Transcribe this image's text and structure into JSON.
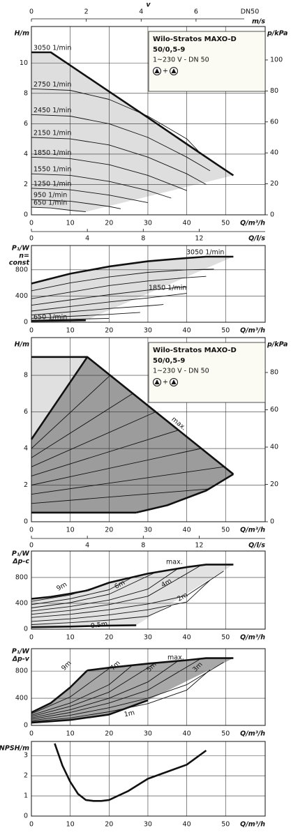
{
  "chart_data": [
    {
      "type": "line",
      "ylabel": "H/m",
      "y2label": "p/kPa",
      "xlabel": "Q/m³/h",
      "x2label": "Q/l/s",
      "xlim": [
        0,
        60.2
      ],
      "xticks": [
        0,
        10,
        20,
        30,
        40,
        50
      ],
      "x2lim": [
        0,
        16.72
      ],
      "x2ticks": [
        0,
        4,
        8,
        12
      ],
      "ylim": [
        0,
        12.4
      ],
      "yticks": [
        0,
        2,
        4,
        6,
        8,
        10
      ],
      "y2lim": [
        0,
        121.6
      ],
      "y2ticks": [
        0,
        20,
        40,
        60,
        80,
        100
      ],
      "top_axis": {
        "label": "v",
        "unit": "m/s",
        "note": "DN50",
        "lim": [
          0,
          8.52
        ],
        "ticks": [
          0,
          2,
          4,
          6
        ]
      },
      "grid": true,
      "line_color": "#111111",
      "shade_color": "#dedede",
      "legend_box": {
        "lines": [
          "Wilo-Stratos MAXO-D",
          "50/0,5-9",
          "1~230 V - DN 50"
        ],
        "joiner": "+"
      },
      "series": [
        {
          "name": "3050 1/min",
          "style": "thick",
          "x": [
            0,
            5,
            10,
            20,
            30,
            40,
            48,
            52
          ],
          "values": [
            10.7,
            10.7,
            9.84,
            8.12,
            6.4,
            4.66,
            3.28,
            2.6
          ]
        },
        {
          "name": "2750 1/min",
          "x": [
            0,
            10,
            20,
            30,
            40,
            43
          ],
          "values": [
            8.3,
            8.2,
            7.6,
            6.5,
            5.0,
            4.2
          ]
        },
        {
          "name": "2450 1/min",
          "x": [
            0,
            10,
            20,
            30,
            40,
            46
          ],
          "values": [
            6.6,
            6.5,
            6.0,
            5.1,
            3.8,
            2.9
          ]
        },
        {
          "name": "2150 1/min",
          "x": [
            0,
            10,
            20,
            30,
            40,
            45
          ],
          "values": [
            5.1,
            5.0,
            4.6,
            3.8,
            2.7,
            2.0
          ]
        },
        {
          "name": "1850 1/min",
          "x": [
            0,
            10,
            20,
            30,
            40
          ],
          "values": [
            3.8,
            3.7,
            3.3,
            2.6,
            1.6
          ]
        },
        {
          "name": "1550 1/min",
          "x": [
            0,
            10,
            20,
            30,
            36
          ],
          "values": [
            2.7,
            2.6,
            2.2,
            1.6,
            1.1
          ]
        },
        {
          "name": "1250 1/min",
          "x": [
            0,
            10,
            20,
            30
          ],
          "values": [
            1.75,
            1.65,
            1.3,
            0.8
          ]
        },
        {
          "name": "950 1/min",
          "x": [
            0,
            10,
            20,
            23
          ],
          "values": [
            1.0,
            0.9,
            0.55,
            0.4
          ]
        },
        {
          "name": "650 1/min",
          "x": [
            0,
            5,
            10,
            14
          ],
          "values": [
            0.5,
            0.45,
            0.3,
            0.2
          ]
        }
      ]
    },
    {
      "type": "line",
      "ylabel": "P₁/W",
      "ylabel_lines": [
        "n=",
        "const"
      ],
      "xlabel": "Q/m³/h",
      "xlim": [
        0,
        60.2
      ],
      "xticks": [
        0,
        10,
        20,
        30,
        40,
        50
      ],
      "ylim": [
        0,
        1170
      ],
      "yticks": [
        0,
        400,
        800
      ],
      "grid": true,
      "line_color": "#111111",
      "shade_color": "#dedede",
      "series": [
        {
          "name": "3050 1/min",
          "style": "thick",
          "x": [
            0,
            10,
            20,
            30,
            40,
            45,
            52
          ],
          "values": [
            590,
            740,
            850,
            930,
            980,
            1000,
            1000
          ]
        },
        {
          "x": [
            0,
            10,
            20,
            30,
            40,
            47
          ],
          "values": [
            480,
            600,
            690,
            760,
            800,
            810
          ]
        },
        {
          "x": [
            0,
            10,
            20,
            30,
            40,
            45
          ],
          "values": [
            360,
            460,
            560,
            630,
            680,
            700
          ]
        },
        {
          "x": [
            0,
            10,
            20,
            30,
            40
          ],
          "values": [
            260,
            340,
            420,
            490,
            540
          ]
        },
        {
          "name": "1850 1/min",
          "x": [
            0,
            10,
            20,
            30,
            40
          ],
          "values": [
            170,
            240,
            310,
            370,
            440
          ]
        },
        {
          "x": [
            0,
            10,
            20,
            30,
            34
          ],
          "values": [
            110,
            160,
            210,
            250,
            270
          ]
        },
        {
          "x": [
            0,
            10,
            20,
            28
          ],
          "values": [
            60,
            90,
            120,
            150
          ]
        },
        {
          "x": [
            0,
            10,
            20
          ],
          "values": [
            30,
            45,
            60
          ]
        },
        {
          "name": "650 1/min",
          "style": "thick",
          "x": [
            0,
            10,
            14
          ],
          "values": [
            20,
            25,
            30
          ]
        }
      ]
    },
    {
      "type": "line",
      "ylabel": "H/m",
      "y2label": "p/kPa",
      "xlabel": "Q/m³/h",
      "x2label": "Q/l/s",
      "xlim": [
        0,
        60.2
      ],
      "xticks": [
        0,
        10,
        20,
        30,
        40,
        50
      ],
      "x2lim": [
        0,
        16.72
      ],
      "x2ticks": [
        0,
        4,
        8,
        12
      ],
      "ylim": [
        0,
        10.06
      ],
      "yticks": [
        0,
        2,
        4,
        6,
        8
      ],
      "y2lim": [
        0,
        98.7
      ],
      "y2ticks": [
        0,
        20,
        40,
        60,
        80
      ],
      "grid": true,
      "line_color": "#111111",
      "legend_box": {
        "lines": [
          "Wilo-Stratos MAXO-D",
          "50/0,5-9",
          "1~230 V - DN 50"
        ],
        "joiner": "+"
      },
      "series": [
        {
          "fill": "#e0e0e0",
          "x": [
            0,
            14.4,
            0
          ],
          "values": [
            9,
            9,
            4.5
          ]
        },
        {
          "fill": "#9c9c9c",
          "x": [
            0,
            0,
            14.4,
            52,
            45,
            35,
            27
          ],
          "values": [
            0.5,
            4.5,
            9,
            2.6,
            1.7,
            0.9,
            0.5
          ]
        },
        {
          "name": "max.",
          "style": "thick",
          "x": [
            0,
            14.4,
            52
          ],
          "values": [
            9,
            9,
            2.6
          ]
        },
        {
          "style": "thick",
          "x": [
            0,
            14.4
          ],
          "values": [
            4.5,
            9
          ]
        },
        {
          "style": "thick",
          "x": [
            0,
            27
          ],
          "values": [
            0.5,
            0.5
          ]
        },
        {
          "style": "thick",
          "x": [
            27,
            35,
            45,
            52
          ],
          "values": [
            0.5,
            0.9,
            1.7,
            2.6
          ]
        },
        {
          "x": [
            0,
            46
          ],
          "values": [
            1,
            1.8
          ]
        },
        {
          "x": [
            0,
            49.5
          ],
          "values": [
            1.5,
            3
          ]
        },
        {
          "x": [
            0,
            43.7
          ],
          "values": [
            2,
            4
          ]
        },
        {
          "x": [
            0,
            37.8
          ],
          "values": [
            2.5,
            5
          ]
        },
        {
          "x": [
            0,
            32
          ],
          "values": [
            3,
            6
          ]
        },
        {
          "x": [
            0,
            26.1
          ],
          "values": [
            3.5,
            7
          ]
        },
        {
          "x": [
            0,
            20.3
          ],
          "values": [
            4,
            8
          ]
        }
      ]
    },
    {
      "type": "line",
      "ylabel": "P₁/W",
      "ylabel_lines": [
        "Δp-c"
      ],
      "xlabel": "Q/m³/h",
      "xlim": [
        0,
        60.2
      ],
      "xticks": [
        0,
        10,
        20,
        30,
        40,
        50
      ],
      "ylim": [
        0,
        1210
      ],
      "yticks": [
        0,
        400,
        800
      ],
      "grid": true,
      "line_color": "#111111",
      "shade_color": "#e2e2e2",
      "series": [
        {
          "name": "9m",
          "style": "thick",
          "x": [
            0,
            5,
            10,
            14.4
          ],
          "values": [
            470,
            500,
            550,
            600
          ]
        },
        {
          "name": "max.",
          "style": "thick",
          "x": [
            14.4,
            20,
            30,
            40,
            45,
            52
          ],
          "values": [
            600,
            720,
            860,
            960,
            1000,
            1000
          ]
        },
        {
          "x": [
            0,
            10,
            20.3
          ],
          "values": [
            430,
            530,
            720
          ]
        },
        {
          "x": [
            0,
            10,
            20,
            26.1
          ],
          "values": [
            380,
            470,
            610,
            805
          ]
        },
        {
          "name": "6m",
          "x": [
            0,
            10,
            20,
            32
          ],
          "values": [
            330,
            410,
            540,
            880
          ]
        },
        {
          "x": [
            0,
            10,
            20,
            30,
            37.8
          ],
          "values": [
            280,
            350,
            450,
            620,
            940
          ]
        },
        {
          "name": "4m",
          "x": [
            0,
            10,
            20,
            30,
            43.7
          ],
          "values": [
            230,
            290,
            380,
            510,
            990
          ]
        },
        {
          "x": [
            0,
            10,
            20,
            30,
            40,
            49.5
          ],
          "values": [
            180,
            230,
            300,
            390,
            520,
            900
          ]
        },
        {
          "name": "2m",
          "x": [
            0,
            10,
            20,
            30,
            40,
            46
          ],
          "values": [
            120,
            160,
            220,
            300,
            420,
            760
          ]
        },
        {
          "x": [
            0,
            10,
            20,
            30,
            36
          ],
          "values": [
            70,
            100,
            140,
            200,
            360
          ]
        },
        {
          "name": "0.5m",
          "style": "thick",
          "x": [
            0,
            10,
            20,
            27
          ],
          "values": [
            30,
            40,
            55,
            60
          ]
        }
      ]
    },
    {
      "type": "line",
      "ylabel": "P₁/W",
      "ylabel_lines": [
        "Δp-v"
      ],
      "xlabel": "Q/m³/h",
      "xlim": [
        0,
        60.2
      ],
      "xticks": [
        0,
        10,
        20,
        30,
        40,
        50
      ],
      "ylim": [
        0,
        1130
      ],
      "yticks": [
        0,
        400,
        800
      ],
      "grid": true,
      "line_color": "#111111",
      "shade_color": "#a8a8a8",
      "series": [
        {
          "name": "9m",
          "style": "thick",
          "x": [
            0,
            5,
            10,
            14.4
          ],
          "values": [
            190,
            330,
            560,
            810
          ]
        },
        {
          "name": "max.",
          "style": "thick",
          "x": [
            14.4,
            20,
            30,
            40,
            45,
            52
          ],
          "values": [
            810,
            850,
            910,
            960,
            990,
            990
          ]
        },
        {
          "x": [
            0,
            10,
            20.3
          ],
          "values": [
            170,
            420,
            850
          ]
        },
        {
          "name": "7m",
          "x": [
            0,
            10,
            20,
            26.1
          ],
          "values": [
            150,
            330,
            600,
            890
          ]
        },
        {
          "x": [
            0,
            10,
            20,
            32
          ],
          "values": [
            130,
            280,
            490,
            920
          ]
        },
        {
          "name": "5m",
          "x": [
            0,
            10,
            20,
            30,
            37.8
          ],
          "values": [
            110,
            230,
            400,
            640,
            950
          ]
        },
        {
          "x": [
            0,
            10,
            20,
            30,
            43.7
          ],
          "values": [
            90,
            190,
            330,
            520,
            985
          ]
        },
        {
          "name": "3m",
          "x": [
            0,
            10,
            20,
            30,
            40,
            49.5
          ],
          "values": [
            70,
            150,
            260,
            400,
            600,
            930
          ]
        },
        {
          "x": [
            0,
            10,
            20,
            30,
            40,
            46
          ],
          "values": [
            55,
            110,
            200,
            320,
            520,
            820
          ]
        },
        {
          "name": "1m",
          "style": "thick",
          "x": [
            0,
            10,
            20,
            30
          ],
          "values": [
            40,
            80,
            160,
            370
          ]
        }
      ]
    },
    {
      "type": "line",
      "ylabel": "NPSH/m",
      "xlabel": "Q/m³/h",
      "xlim": [
        0,
        60.2
      ],
      "xticks": [
        0,
        10,
        20,
        30,
        40,
        50
      ],
      "ylim": [
        0,
        3.7
      ],
      "yticks": [
        0,
        1,
        2,
        3
      ],
      "grid": true,
      "line_color": "#111111",
      "series": [
        {
          "style": "thick",
          "x": [
            6,
            8,
            10,
            12,
            14,
            16,
            18,
            20,
            25,
            30,
            35,
            40,
            45
          ],
          "values": [
            3.6,
            2.5,
            1.7,
            1.1,
            0.8,
            0.75,
            0.75,
            0.8,
            1.25,
            1.85,
            2.2,
            2.55,
            3.25
          ]
        }
      ]
    }
  ]
}
